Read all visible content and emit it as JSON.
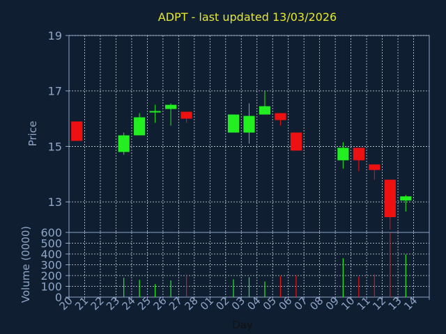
{
  "chart_data": [
    {
      "type": "candlestick",
      "title": "ADPT - last updated 13/03/2026",
      "ylabel": "Price",
      "ylim": [
        11.9,
        19
      ],
      "yticks": [
        13,
        15,
        17,
        19
      ],
      "grid": true,
      "x": [
        "20",
        "21",
        "22",
        "23",
        "24",
        "25",
        "26",
        "27",
        "28",
        "01",
        "02",
        "03",
        "04",
        "05",
        "06",
        "07",
        "08",
        "09",
        "10",
        "11",
        "12",
        "13",
        "14"
      ],
      "candles": [
        {
          "x": "20",
          "open": 15.9,
          "close": 15.2,
          "high": 15.9,
          "low": 15.2
        },
        {
          "x": "23",
          "open": 14.8,
          "close": 15.4,
          "high": 15.5,
          "low": 14.7
        },
        {
          "x": "24",
          "open": 15.4,
          "close": 16.05,
          "high": 16.2,
          "low": 15.4
        },
        {
          "x": "25",
          "open": 16.2,
          "close": 16.25,
          "high": 16.5,
          "low": 15.85
        },
        {
          "x": "26",
          "open": 16.35,
          "close": 16.5,
          "high": 16.55,
          "low": 15.75
        },
        {
          "x": "27",
          "open": 16.25,
          "close": 16.0,
          "high": 16.25,
          "low": 15.85
        },
        {
          "x": "02",
          "open": 15.5,
          "close": 16.15,
          "high": 16.15,
          "low": 15.5
        },
        {
          "x": "03",
          "open": 15.5,
          "close": 16.1,
          "high": 16.55,
          "low": 15.1
        },
        {
          "x": "04",
          "open": 16.15,
          "close": 16.45,
          "high": 17.0,
          "low": 16.15
        },
        {
          "x": "05",
          "open": 16.2,
          "close": 15.95,
          "high": 16.2,
          "low": 15.75
        },
        {
          "x": "06",
          "open": 15.5,
          "close": 14.85,
          "high": 15.5,
          "low": 14.85
        },
        {
          "x": "09",
          "open": 14.5,
          "close": 14.95,
          "high": 15.15,
          "low": 14.2
        },
        {
          "x": "10",
          "open": 14.95,
          "close": 14.5,
          "high": 14.95,
          "low": 14.1
        },
        {
          "x": "11",
          "open": 14.35,
          "close": 14.15,
          "high": 14.35,
          "low": 13.8
        },
        {
          "x": "12",
          "open": 13.8,
          "close": 12.45,
          "high": 13.8,
          "low": 12.0
        },
        {
          "x": "13",
          "open": 13.05,
          "close": 13.2,
          "high": 13.25,
          "low": 12.65
        }
      ],
      "colors": {
        "up": "#22ee22",
        "down": "#ee1111"
      }
    },
    {
      "type": "bar",
      "xlabel": "Day",
      "ylabel": "Volume (0000)",
      "ylim": [
        0,
        600
      ],
      "yticks": [
        0,
        100,
        200,
        300,
        400,
        500,
        600
      ],
      "x": [
        "20",
        "21",
        "22",
        "23",
        "24",
        "25",
        "26",
        "27",
        "28",
        "01",
        "02",
        "03",
        "04",
        "05",
        "06",
        "07",
        "08",
        "09",
        "10",
        "11",
        "12",
        "13",
        "14"
      ],
      "series": [
        {
          "values": [
            0,
            0,
            0,
            180,
            160,
            120,
            155,
            210,
            0,
            0,
            165,
            185,
            145,
            195,
            205,
            0,
            0,
            360,
            190,
            210,
            600,
            395,
            0
          ],
          "direction": [
            "down",
            "",
            "",
            "up",
            "up",
            "up",
            "up",
            "down",
            "",
            "",
            "up",
            "up",
            "up",
            "down",
            "down",
            "",
            "",
            "up",
            "down",
            "down",
            "down",
            "up",
            ""
          ]
        }
      ]
    }
  ],
  "style": {
    "background": "#0f1f31",
    "axis_color": "#8fa6c9",
    "grid_color": "#d0d8e4",
    "title_color": "#e8e82a"
  }
}
